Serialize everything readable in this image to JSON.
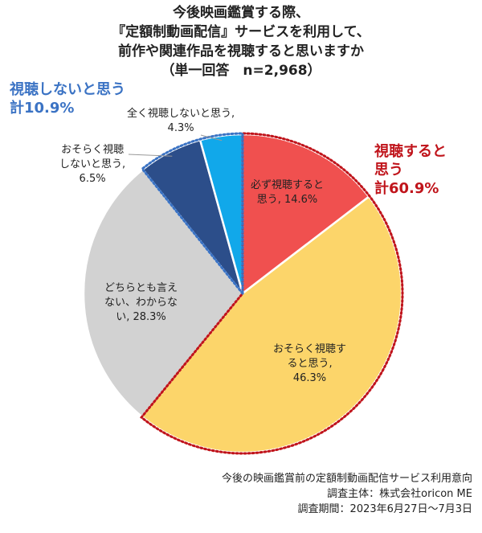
{
  "title": {
    "line1": "今後映画鑑賞する際、",
    "line2": "『定額制動画配信』サービスを利用して、",
    "line3": "前作や関連作品を視聴すると思いますか",
    "line4": "（単一回答　n=2,968）"
  },
  "groups": {
    "negative": {
      "line1": "視聴しないと思う",
      "line2": "計10.9%",
      "color": "#3b73c4"
    },
    "positive": {
      "line1": "視聴すると",
      "line2": "思う",
      "line3": "計60.9%",
      "color": "#c0141b"
    }
  },
  "chart_data": {
    "type": "pie",
    "title": "今後映画鑑賞する際、『定額制動画配信』サービスを利用して、前作や関連作品を視聴すると思いますか（単一回答　n=2,968）",
    "start": "12 o'clock",
    "direction": "clockwise",
    "slices": [
      {
        "label": "必ず視聴すると思う",
        "value": 14.6,
        "color": "#f0504f",
        "text_line1": "必ず視聴すると",
        "text_line2": "思う, 14.6%"
      },
      {
        "label": "おそらく視聴すると思う",
        "value": 46.3,
        "color": "#fcd56a",
        "text_line1": "おそらく視聴す",
        "text_line2": "ると思う,",
        "text_line3": "46.3%"
      },
      {
        "label": "どちらとも言えない、わからない",
        "value": 28.3,
        "color": "#d2d2d2",
        "text_line1": "どちらとも言え",
        "text_line2": "ない、わからな",
        "text_line3": "い, 28.3%"
      },
      {
        "label": "おそらく視聴しないと思う",
        "value": 6.5,
        "color": "#2c4e8a",
        "text_line1": "おそらく視聴",
        "text_line2": "しないと思う,",
        "text_line3": "6.5%"
      },
      {
        "label": "全く視聴しないと思う",
        "value": 4.3,
        "color": "#11a8ea",
        "text_line1": "全く視聴しないと思う,",
        "text_line2": "4.3%"
      }
    ],
    "group_outlines": [
      {
        "name": "視聴すると思う",
        "color": "#c0141b",
        "style": "dotted"
      },
      {
        "name": "視聴しないと思う",
        "color": "#3b73c4",
        "style": "dotted"
      }
    ]
  },
  "footer": {
    "line1": "今後の映画鑑賞前の定額制動画配信サービス利用意向",
    "line2": "調査主体：株式会社oricon ME",
    "line3": "調査期間：2023年6月27日～7月3日"
  }
}
